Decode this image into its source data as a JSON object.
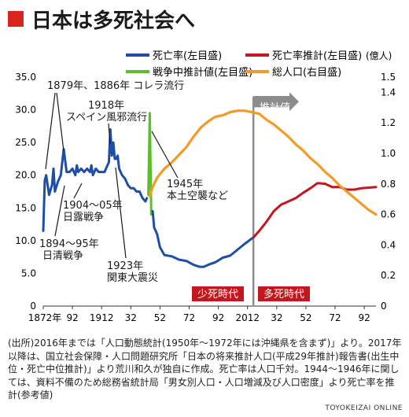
{
  "title": "日本は多死社会へ",
  "colors": {
    "title_mark": "#d7261d",
    "death_rate": "#1f4ea3",
    "death_rate_projection": "#c4161c",
    "wartime_estimate": "#5cbf2a",
    "total_population": "#f39b26",
    "divider": "#8c8c8c",
    "band": "#c4161c"
  },
  "legend": {
    "unit_right": "(億人)",
    "items": [
      {
        "label": "死亡率(左目盛)",
        "color": "#1f4ea3"
      },
      {
        "label": "死亡率推計(左目盛)",
        "color": "#c4161c"
      },
      {
        "label": "戦争中推計値(左目盛)",
        "color": "#5cbf2a"
      },
      {
        "label": "総人口(右目盛)",
        "color": "#f39b26"
      }
    ]
  },
  "projection_label": "推計値",
  "bands": [
    "少死時代",
    "多死時代"
  ],
  "annotations": [
    "1879年、1886年 コレラ流行",
    "1918年",
    "スペイン風邪流行",
    "1945年",
    "本土空襲など",
    "1904〜05年",
    "日露戦争",
    "1894〜95年",
    "日清戦争",
    "1923年",
    "関東大震災"
  ],
  "source_text": "(出所)2016年までは「人口動態統計(1950年〜1972年には沖縄県を含まず)」より。2017年以降は、国立社会保障・人口問題研究所「日本の将来推計人口(平成29年推計)報告書(出生中位・死亡中位推計)」より荒川和久が独自に作成。死亡率は人口千対。1944〜1946年に関しては、資料不備のため総務省統計局「男女別人口・人口増減及び人口密度」より死亡率を推計(参考値)",
  "credit": "TOYOKEIZAI ONLINE",
  "chart_data": {
    "type": "line",
    "title": "日本は多死社会へ",
    "xlabel": "",
    "ylabel": "",
    "y2label": "(億人)",
    "xlim": [
      1872,
      2100
    ],
    "ylim": [
      0,
      35
    ],
    "y2lim": [
      0,
      1.5
    ],
    "x_tick_labels": [
      "1872年",
      "92",
      "1912",
      "32",
      "52",
      "72",
      "92",
      "2012",
      "32",
      "52",
      "72",
      "92"
    ],
    "y_tick_labels": [
      "0",
      "5.0",
      "10.0",
      "15.0",
      "20.0",
      "25.0",
      "30.0",
      "35.0"
    ],
    "y2_tick_labels": [
      "0",
      "0.2",
      "0.4",
      "0.6",
      "0.8",
      "1.0",
      "1.2",
      "1.4",
      "1.5"
    ],
    "projection_start": 2016,
    "grid": false,
    "legend_position": "top",
    "series": [
      {
        "name": "死亡率(左目盛)",
        "axis": "left",
        "x": [
          1872,
          1873,
          1874,
          1876,
          1878,
          1879,
          1880,
          1882,
          1884,
          1886,
          1888,
          1890,
          1892,
          1894,
          1895,
          1896,
          1898,
          1900,
          1902,
          1904,
          1905,
          1906,
          1908,
          1910,
          1912,
          1914,
          1916,
          1917,
          1918,
          1919,
          1920,
          1921,
          1922,
          1923,
          1924,
          1926,
          1928,
          1930,
          1932,
          1934,
          1936,
          1938,
          1940,
          1942,
          1943
        ],
        "y": [
          11.5,
          19.2,
          20.0,
          17.0,
          18.5,
          21.0,
          17.5,
          19.0,
          20.0,
          24.0,
          20.5,
          20.5,
          21.0,
          20.0,
          21.5,
          20.5,
          21.0,
          20.5,
          21.0,
          20.5,
          21.5,
          20.0,
          21.0,
          20.5,
          20.5,
          20.5,
          21.5,
          22.0,
          27.0,
          23.0,
          25.0,
          22.5,
          22.5,
          23.0,
          21.0,
          20.0,
          19.5,
          18.5,
          18.0,
          18.0,
          17.5,
          17.5,
          16.5,
          16.0,
          16.5
        ]
      },
      {
        "name": "戦争中推計値(左目盛)",
        "axis": "left",
        "x": [
          1944,
          1945,
          1946
        ],
        "y": [
          17.0,
          29.5,
          14.0
        ]
      },
      {
        "name": "死亡率(左目盛)",
        "axis": "left",
        "x": [
          1947,
          1948,
          1949,
          1950,
          1952,
          1955,
          1960,
          1965,
          1970,
          1975,
          1979,
          1982,
          1985,
          1990,
          1995,
          2000,
          2005,
          2010,
          2016
        ],
        "y": [
          14.5,
          12.0,
          11.5,
          11.0,
          9.0,
          7.8,
          7.6,
          7.1,
          6.9,
          6.3,
          6.0,
          6.0,
          6.3,
          6.7,
          7.4,
          7.7,
          8.6,
          9.5,
          10.5
        ]
      },
      {
        "name": "死亡率推計(左目盛)",
        "axis": "left",
        "x": [
          2016,
          2020,
          2025,
          2030,
          2035,
          2040,
          2045,
          2050,
          2055,
          2060,
          2065,
          2070,
          2075,
          2080,
          2085,
          2090,
          2095,
          2100
        ],
        "y": [
          10.5,
          11.5,
          12.9,
          14.5,
          15.5,
          16.0,
          16.5,
          17.3,
          18.0,
          18.8,
          18.7,
          18.2,
          18.2,
          17.8,
          17.8,
          18.0,
          18.1,
          18.2
        ]
      },
      {
        "name": "総人口(右目盛)",
        "axis": "right",
        "x": [
          1945,
          1947,
          1950,
          1955,
          1960,
          1965,
          1970,
          1975,
          1980,
          1985,
          1990,
          1995,
          2000,
          2005,
          2008,
          2010,
          2015,
          2020,
          2025,
          2030,
          2035,
          2040,
          2045,
          2050,
          2055,
          2060,
          2065,
          2070,
          2075,
          2080,
          2085,
          2090,
          2095,
          2100
        ],
        "y": [
          0.72,
          0.78,
          0.84,
          0.9,
          0.94,
          0.99,
          1.04,
          1.11,
          1.17,
          1.21,
          1.24,
          1.25,
          1.27,
          1.28,
          1.28,
          1.28,
          1.27,
          1.26,
          1.22,
          1.19,
          1.15,
          1.11,
          1.06,
          1.02,
          0.97,
          0.93,
          0.88,
          0.84,
          0.79,
          0.75,
          0.71,
          0.67,
          0.63,
          0.6
        ]
      }
    ]
  }
}
